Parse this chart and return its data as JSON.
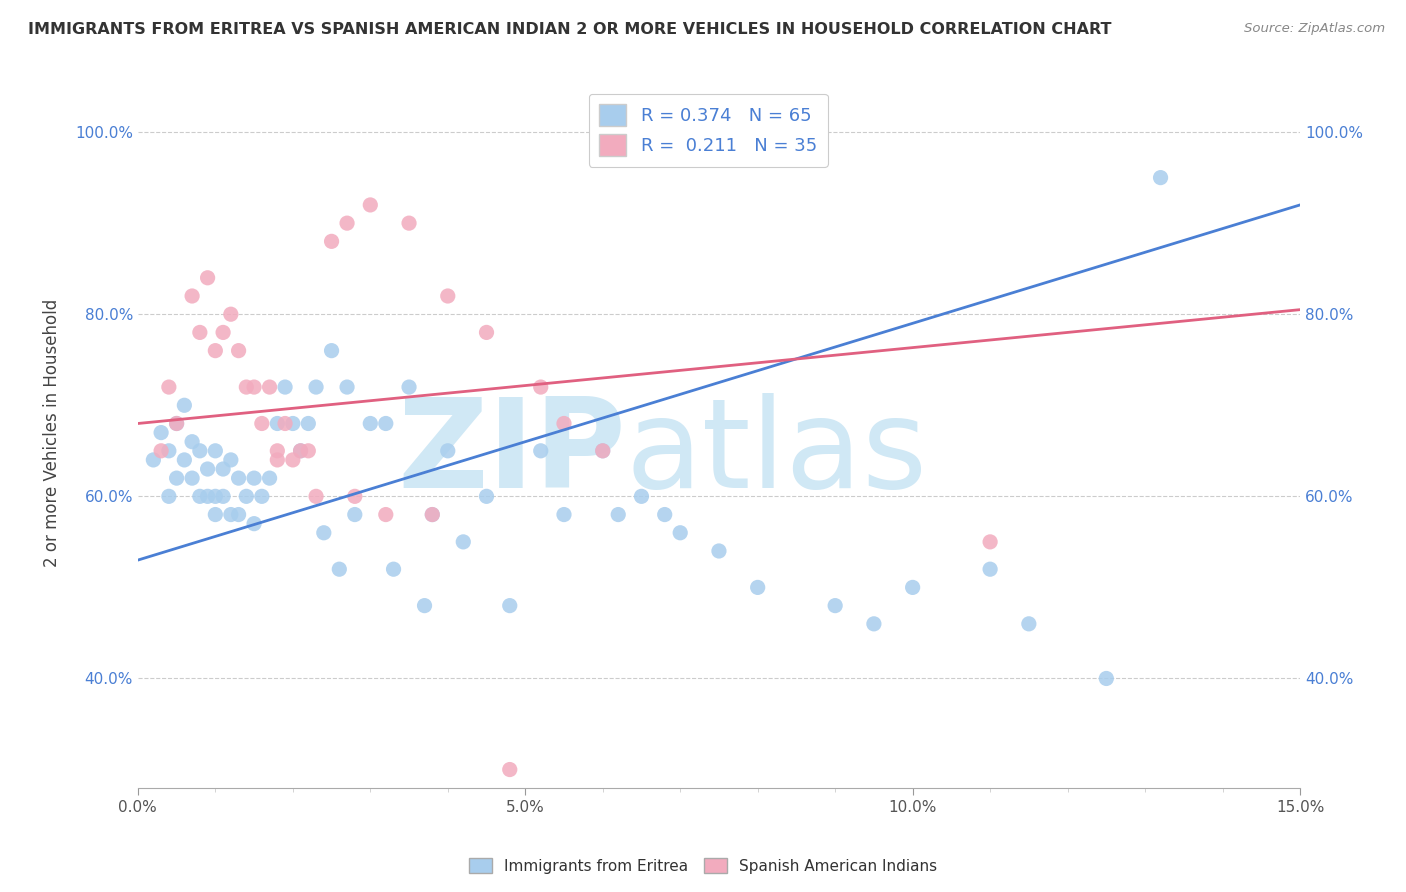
{
  "title": "IMMIGRANTS FROM ERITREA VS SPANISH AMERICAN INDIAN 2 OR MORE VEHICLES IN HOUSEHOLD CORRELATION CHART",
  "source": "Source: ZipAtlas.com",
  "ylabel": "2 or more Vehicles in Household",
  "xlim": [
    0.0,
    15.0
  ],
  "ylim": [
    28.0,
    106.0
  ],
  "xtick_labels": [
    "0.0%",
    "5.0%",
    "10.0%",
    "15.0%"
  ],
  "ytick_labels": [
    "40.0%",
    "60.0%",
    "80.0%",
    "100.0%"
  ],
  "ytick_values": [
    40.0,
    60.0,
    80.0,
    100.0
  ],
  "xtick_values": [
    0.0,
    5.0,
    10.0,
    15.0
  ],
  "blue_R": 0.374,
  "blue_N": 65,
  "pink_R": 0.211,
  "pink_N": 35,
  "blue_color": "#A8CDED",
  "pink_color": "#F2ABBE",
  "blue_line_color": "#4A7FD4",
  "pink_line_color": "#E06080",
  "legend_label_blue": "Immigrants from Eritrea",
  "legend_label_pink": "Spanish American Indians",
  "watermark_zip": "ZIP",
  "watermark_atlas": "atlas",
  "watermark_color": "#D0E8F5",
  "blue_line_x0": 0.0,
  "blue_line_x1": 15.0,
  "blue_line_y0": 53.0,
  "blue_line_y1": 92.0,
  "pink_line_x0": 0.0,
  "pink_line_x1": 15.0,
  "pink_line_y0": 68.0,
  "pink_line_y1": 80.5,
  "blue_scatter_x": [
    0.2,
    0.3,
    0.4,
    0.4,
    0.5,
    0.5,
    0.6,
    0.6,
    0.7,
    0.7,
    0.8,
    0.8,
    0.9,
    0.9,
    1.0,
    1.0,
    1.0,
    1.1,
    1.1,
    1.2,
    1.2,
    1.3,
    1.3,
    1.4,
    1.5,
    1.5,
    1.6,
    1.7,
    1.8,
    1.9,
    2.0,
    2.1,
    2.2,
    2.3,
    2.5,
    2.7,
    3.0,
    3.2,
    3.5,
    4.0,
    4.5,
    5.2,
    5.5,
    6.0,
    6.2,
    6.5,
    7.0,
    7.5,
    8.0,
    9.0,
    9.5,
    10.0,
    11.0,
    11.5,
    12.5,
    3.8,
    4.2,
    4.8,
    2.8,
    3.3,
    3.7,
    2.4,
    2.6,
    6.8,
    13.2
  ],
  "blue_scatter_y": [
    64,
    67,
    60,
    65,
    62,
    68,
    64,
    70,
    62,
    66,
    60,
    65,
    60,
    63,
    58,
    60,
    65,
    60,
    63,
    58,
    64,
    58,
    62,
    60,
    57,
    62,
    60,
    62,
    68,
    72,
    68,
    65,
    68,
    72,
    76,
    72,
    68,
    68,
    72,
    65,
    60,
    65,
    58,
    65,
    58,
    60,
    56,
    54,
    50,
    48,
    46,
    50,
    52,
    46,
    40,
    58,
    55,
    48,
    58,
    52,
    48,
    56,
    52,
    58,
    95
  ],
  "pink_scatter_x": [
    0.3,
    0.4,
    0.5,
    0.7,
    0.8,
    0.9,
    1.0,
    1.1,
    1.2,
    1.3,
    1.4,
    1.5,
    1.6,
    1.7,
    1.8,
    1.9,
    2.0,
    2.1,
    2.2,
    2.3,
    2.5,
    2.7,
    3.0,
    3.5,
    4.0,
    4.5,
    5.2,
    1.8,
    5.5,
    6.0,
    2.8,
    3.2,
    3.8,
    11.0,
    4.8
  ],
  "pink_scatter_y": [
    65,
    72,
    68,
    82,
    78,
    84,
    76,
    78,
    80,
    76,
    72,
    72,
    68,
    72,
    65,
    68,
    64,
    65,
    65,
    60,
    88,
    90,
    92,
    90,
    82,
    78,
    72,
    64,
    68,
    65,
    60,
    58,
    58,
    55,
    30
  ]
}
